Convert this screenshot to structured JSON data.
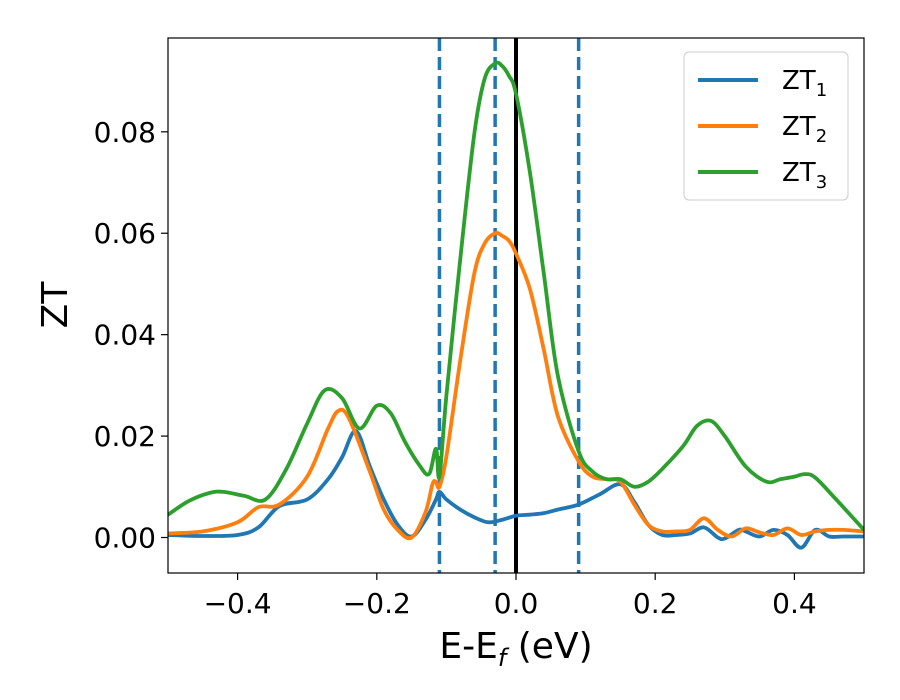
{
  "chart_data": {
    "type": "line",
    "xlabel": "E-E",
    "xlabel_sub": "f",
    "xlabel_unit": " (eV)",
    "ylabel": "ZT",
    "xlim": [
      -0.5,
      0.5
    ],
    "ylim": [
      -0.007,
      0.0985
    ],
    "xticks": [
      -0.4,
      -0.2,
      0.0,
      0.2,
      0.4
    ],
    "xtick_labels": [
      "−0.4",
      "−0.2",
      "0.0",
      "0.2",
      "0.4"
    ],
    "yticks": [
      0.0,
      0.02,
      0.04,
      0.06,
      0.08
    ],
    "ytick_labels": [
      "0.00",
      "0.02",
      "0.04",
      "0.06",
      "0.08"
    ],
    "grid": false,
    "legend_position": "top-right",
    "vertical_lines": [
      {
        "x": -0.11,
        "style": "dashed",
        "color": "#1f77b4"
      },
      {
        "x": -0.03,
        "style": "dashed",
        "color": "#1f77b4"
      },
      {
        "x": 0.09,
        "style": "dashed",
        "color": "#1f77b4"
      },
      {
        "x": 0.0,
        "style": "solid",
        "color": "#000000"
      }
    ],
    "series": [
      {
        "name": "ZT",
        "name_sub": "1",
        "color": "#1f77b4",
        "x": [
          -0.5,
          -0.45,
          -0.4,
          -0.37,
          -0.34,
          -0.3,
          -0.27,
          -0.25,
          -0.23,
          -0.21,
          -0.19,
          -0.17,
          -0.15,
          -0.13,
          -0.115,
          -0.11,
          -0.1,
          -0.08,
          -0.06,
          -0.04,
          -0.02,
          0.0,
          0.02,
          0.04,
          0.06,
          0.09,
          0.12,
          0.15,
          0.17,
          0.19,
          0.21,
          0.23,
          0.25,
          0.27,
          0.29,
          0.3,
          0.32,
          0.33,
          0.35,
          0.37,
          0.39,
          0.41,
          0.43,
          0.45,
          0.47,
          0.5
        ],
        "y": [
          0.0005,
          0.0003,
          0.0005,
          0.002,
          0.0062,
          0.0075,
          0.0115,
          0.0158,
          0.021,
          0.014,
          0.0075,
          0.0025,
          0.0002,
          0.0035,
          0.0075,
          0.009,
          0.0075,
          0.0055,
          0.004,
          0.003,
          0.0035,
          0.0043,
          0.0045,
          0.0048,
          0.0055,
          0.0065,
          0.0085,
          0.0105,
          0.007,
          0.0025,
          0.0005,
          0.0005,
          0.0008,
          0.002,
          0.0,
          -0.0002,
          0.0015,
          0.0012,
          0.0002,
          0.0015,
          0.0005,
          -0.002,
          0.0015,
          0.0002,
          0.0002,
          0.0002
        ]
      },
      {
        "name": "ZT",
        "name_sub": "2",
        "color": "#ff7f0e",
        "x": [
          -0.5,
          -0.45,
          -0.4,
          -0.37,
          -0.34,
          -0.3,
          -0.27,
          -0.255,
          -0.24,
          -0.21,
          -0.19,
          -0.17,
          -0.15,
          -0.13,
          -0.12,
          -0.115,
          -0.11,
          -0.1,
          -0.08,
          -0.06,
          -0.045,
          -0.03,
          -0.02,
          -0.01,
          0.0,
          0.02,
          0.04,
          0.06,
          0.09,
          0.11,
          0.13,
          0.15,
          0.17,
          0.19,
          0.21,
          0.23,
          0.25,
          0.27,
          0.29,
          0.31,
          0.33,
          0.35,
          0.37,
          0.39,
          0.41,
          0.43,
          0.45,
          0.47,
          0.5
        ],
        "y": [
          0.0008,
          0.0012,
          0.003,
          0.006,
          0.0065,
          0.012,
          0.0215,
          0.025,
          0.0235,
          0.013,
          0.0055,
          0.0015,
          0.0,
          0.005,
          0.0105,
          0.011,
          0.01,
          0.016,
          0.035,
          0.052,
          0.058,
          0.06,
          0.0595,
          0.0585,
          0.056,
          0.049,
          0.037,
          0.024,
          0.015,
          0.012,
          0.0115,
          0.011,
          0.0065,
          0.0025,
          0.0012,
          0.0012,
          0.0015,
          0.0038,
          0.0015,
          0.0002,
          0.0018,
          0.001,
          0.0005,
          0.0018,
          0.0005,
          0.0012,
          0.0015,
          0.0015,
          0.0012
        ]
      },
      {
        "name": "ZT",
        "name_sub": "3",
        "color": "#2ca02c",
        "x": [
          -0.5,
          -0.47,
          -0.44,
          -0.42,
          -0.39,
          -0.36,
          -0.33,
          -0.3,
          -0.275,
          -0.25,
          -0.225,
          -0.2,
          -0.18,
          -0.16,
          -0.14,
          -0.125,
          -0.115,
          -0.11,
          -0.1,
          -0.08,
          -0.06,
          -0.045,
          -0.03,
          -0.02,
          -0.01,
          0.0,
          0.02,
          0.04,
          0.06,
          0.09,
          0.11,
          0.13,
          0.15,
          0.17,
          0.19,
          0.21,
          0.24,
          0.26,
          0.28,
          0.3,
          0.33,
          0.36,
          0.38,
          0.4,
          0.415,
          0.43,
          0.46,
          0.5
        ],
        "y": [
          0.0045,
          0.0072,
          0.0088,
          0.009,
          0.0082,
          0.0075,
          0.0135,
          0.0225,
          0.029,
          0.0275,
          0.0215,
          0.026,
          0.0245,
          0.019,
          0.0145,
          0.0125,
          0.0175,
          0.012,
          0.028,
          0.055,
          0.0795,
          0.0905,
          0.0935,
          0.093,
          0.091,
          0.0875,
          0.072,
          0.052,
          0.032,
          0.017,
          0.013,
          0.0115,
          0.0115,
          0.01,
          0.011,
          0.0135,
          0.018,
          0.022,
          0.023,
          0.02,
          0.014,
          0.011,
          0.0115,
          0.012,
          0.0125,
          0.0118,
          0.0075,
          0.0015
        ]
      }
    ]
  }
}
